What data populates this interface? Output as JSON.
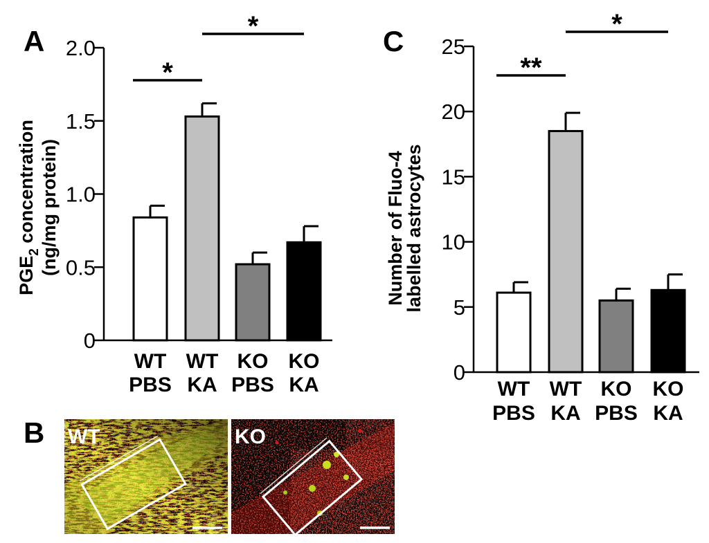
{
  "colors": {
    "wt_pbs": "#ffffff",
    "wt_ka": "#c0c0c0",
    "ko_pbs": "#808080",
    "ko_ka": "#000000",
    "merge_green": "#b6e81c",
    "merge_red": "#d21a14"
  },
  "chart_data": [
    {
      "panel": "A",
      "type": "bar",
      "categories": [
        [
          "WT",
          "PBS"
        ],
        [
          "WT",
          "KA"
        ],
        [
          "KO",
          "PBS"
        ],
        [
          "KO",
          "KA"
        ]
      ],
      "values": [
        0.84,
        1.53,
        0.52,
        0.67
      ],
      "errors": [
        0.08,
        0.09,
        0.08,
        0.11
      ],
      "ylabel_lines": [
        "PGE",
        "2",
        " concentration",
        "(ng/mg protein)"
      ],
      "ylim": [
        0,
        2.0
      ],
      "yticks": [
        "0",
        "0.5",
        "1.0",
        "1.5",
        "2.0"
      ],
      "ytick_values": [
        0,
        0.5,
        1.0,
        1.5,
        2.0
      ],
      "significance": [
        {
          "from": 0,
          "to": 1,
          "label": "*"
        },
        {
          "from": 1,
          "to": 3,
          "label": "*"
        }
      ]
    },
    {
      "panel": "C",
      "type": "bar",
      "categories": [
        [
          "WT",
          "PBS"
        ],
        [
          "WT",
          "KA"
        ],
        [
          "KO",
          "PBS"
        ],
        [
          "KO",
          "KA"
        ]
      ],
      "values": [
        6.1,
        18.5,
        5.5,
        6.3
      ],
      "errors": [
        0.8,
        1.4,
        0.9,
        1.2
      ],
      "ylabel_lines": [
        "Number of Fluo-4",
        "labelled astrocytes"
      ],
      "ylim": [
        0,
        25
      ],
      "yticks": [
        "0",
        "5",
        "10",
        "15",
        "20",
        "25"
      ],
      "ytick_values": [
        0,
        5,
        10,
        15,
        20,
        25
      ],
      "significance": [
        {
          "from": 0,
          "to": 1,
          "label": "**"
        },
        {
          "from": 1,
          "to": 3,
          "label": "*"
        }
      ]
    }
  ],
  "panel_b": {
    "letter": "B",
    "images": [
      {
        "label": "WT"
      },
      {
        "label": "KO"
      }
    ]
  }
}
